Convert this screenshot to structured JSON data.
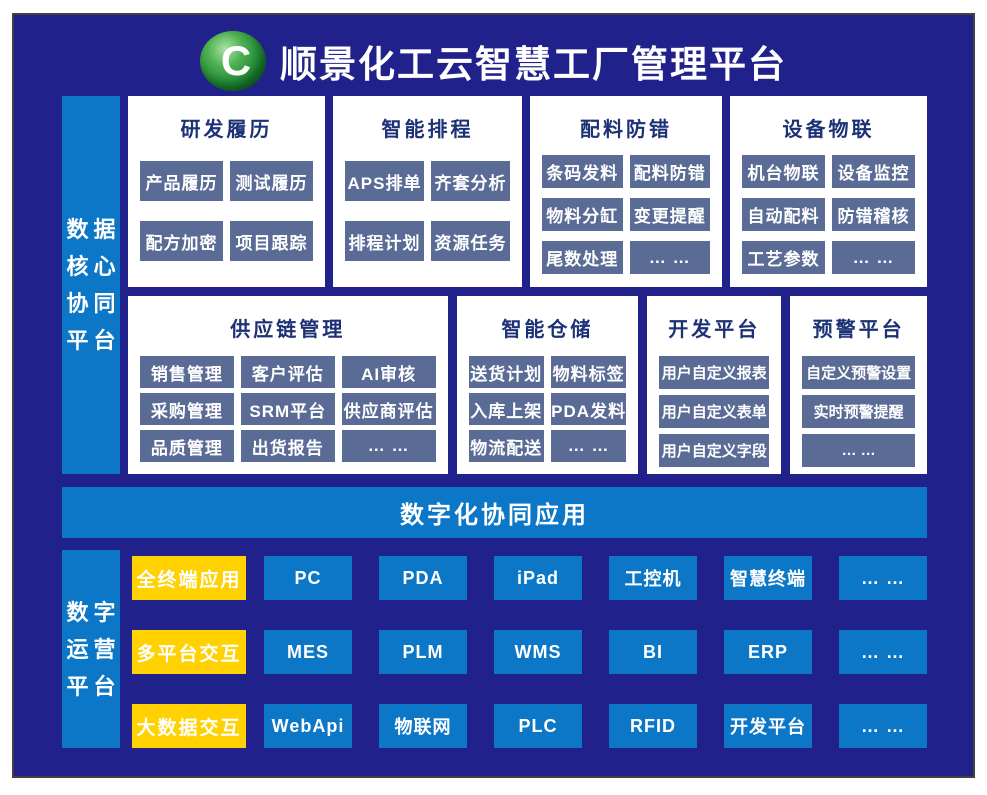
{
  "header": {
    "logo_letter": "C",
    "title": "顺景化工云智慧工厂管理平台"
  },
  "colors": {
    "background": "#21218b",
    "accent_blue": "#0b77c6",
    "chip_slate": "#5a6c96",
    "accent_yellow": "#ffd100",
    "panel_title_navy": "#1c3176"
  },
  "top": {
    "side_label": "数据核心协同平台",
    "side_label_lines": [
      "数据",
      "核心",
      "协同",
      "平台"
    ],
    "row1": [
      {
        "title": "研发履历",
        "items": [
          "产品履历",
          "测试履历",
          "配方加密",
          "项目跟踪"
        ]
      },
      {
        "title": "智能排程",
        "items": [
          "APS排单",
          "齐套分析",
          "排程计划",
          "资源任务"
        ]
      },
      {
        "title": "配料防错",
        "items": [
          "条码发料",
          "配料防错",
          "物料分缸",
          "变更提醒",
          "尾数处理",
          "… …"
        ]
      },
      {
        "title": "设备物联",
        "items": [
          "机台物联",
          "设备监控",
          "自动配料",
          "防错稽核",
          "工艺参数",
          "… …"
        ]
      }
    ],
    "row2": [
      {
        "title": "供应链管理",
        "items": [
          "销售管理",
          "客户评估",
          "AI审核",
          "采购管理",
          "SRM平台",
          "供应商评估",
          "品质管理",
          "出货报告",
          "… …"
        ]
      },
      {
        "title": "智能仓储",
        "items": [
          "送货计划",
          "物料标签",
          "入库上架",
          "PDA发料",
          "物流配送",
          "… …"
        ]
      },
      {
        "title": "开发平台",
        "items": [
          "用户自定义报表",
          "用户自定义表单",
          "用户自定义字段"
        ]
      },
      {
        "title": "预警平台",
        "items": [
          "自定义预警设置",
          "实时预警提醒",
          "… …"
        ]
      }
    ]
  },
  "banner": {
    "label": "数字化协同应用"
  },
  "bottom": {
    "side_label": "数字运营平台",
    "side_label_lines": [
      "数字",
      "运营",
      "平台"
    ],
    "rows": [
      {
        "label": "全终端应用",
        "items": [
          "PC",
          "PDA",
          "iPad",
          "工控机",
          "智慧终端",
          "… …"
        ]
      },
      {
        "label": "多平台交互",
        "items": [
          "MES",
          "PLM",
          "WMS",
          "BI",
          "ERP",
          "… …"
        ]
      },
      {
        "label": "大数据交互",
        "items": [
          "WebApi",
          "物联网",
          "PLC",
          "RFID",
          "开发平台",
          "… …"
        ]
      }
    ]
  }
}
